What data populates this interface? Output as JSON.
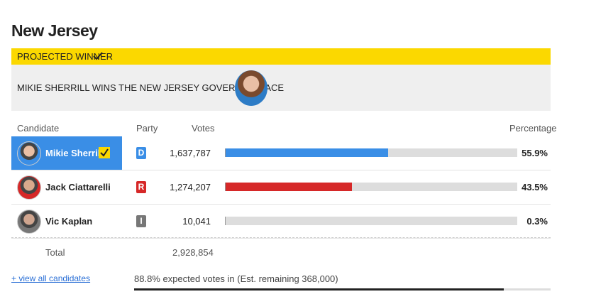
{
  "header": {
    "title": "New Jersey"
  },
  "banner": {
    "label": "PROJECTED WINNER",
    "headline": "MIKIE SHERRILL WINS THE NEW JERSEY GOVERNOR RACE"
  },
  "table": {
    "columns": [
      "Candidate",
      "Party",
      "Votes",
      "Percentage"
    ],
    "rows": [
      {
        "name": "Mikie Sherrill",
        "party": "D",
        "votes": "1,637,787",
        "percentage": 55.9,
        "percentage_label": "55.9%",
        "color": "#3a8ee6",
        "winner": true
      },
      {
        "name": "Jack Ciattarelli",
        "party": "R",
        "votes": "1,274,207",
        "percentage": 43.5,
        "percentage_label": "43.5%",
        "color": "#d62828",
        "winner": false
      },
      {
        "name": "Vic Kaplan",
        "party": "I",
        "votes": "10,041",
        "percentage": 0.3,
        "percentage_label": "0.3%",
        "color": "#777777",
        "winner": false
      }
    ],
    "total_label": "Total",
    "total_votes": "2,928,854"
  },
  "footer": {
    "link": "+ view all candidates",
    "expected": "88.8% expected votes in (Est. remaining 368,000)",
    "expected_percent": 88.8
  }
}
